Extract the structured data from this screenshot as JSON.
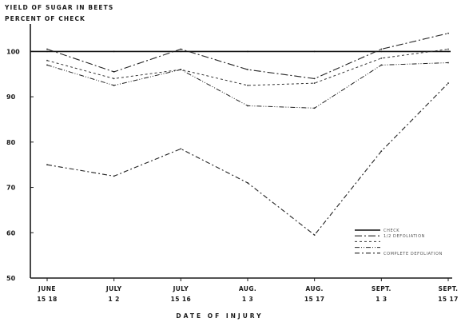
{
  "chart_data": {
    "type": "line",
    "title": "YIELD OF SUGAR IN BEETS",
    "subtitle": "PERCENT OF CHECK",
    "xlabel": "DATE OF INJURY",
    "ylabel": "",
    "ylim": [
      50,
      105
    ],
    "yticks": [
      50,
      60,
      70,
      80,
      90,
      100
    ],
    "grid": false,
    "legend_position": "bottom-right",
    "categories": [
      [
        "JUNE",
        "15 18"
      ],
      [
        "JULY",
        "1 2"
      ],
      [
        "JULY",
        "15 16"
      ],
      [
        "AUG.",
        "1 3"
      ],
      [
        "AUG.",
        "15 17"
      ],
      [
        "SEPT.",
        "1 3"
      ],
      [
        "SEPT.",
        "15 17"
      ]
    ],
    "series": [
      {
        "name": "CHECK",
        "values": [
          100,
          100,
          100,
          100,
          100,
          100,
          100
        ]
      },
      {
        "name": "1/2 DEFOLIATION",
        "values": [
          100.5,
          95.5,
          100.5,
          96,
          94,
          100.5,
          104
        ]
      },
      {
        "name": "",
        "values": [
          98,
          94,
          96,
          92.5,
          93,
          98.5,
          100.5
        ]
      },
      {
        "name": "",
        "values": [
          97,
          92.5,
          96,
          88,
          87.5,
          97,
          97.5
        ]
      },
      {
        "name": "COMPLETE DEFOLIATION",
        "values": [
          75,
          72.5,
          78.5,
          71,
          59.5,
          78,
          93
        ]
      }
    ]
  }
}
